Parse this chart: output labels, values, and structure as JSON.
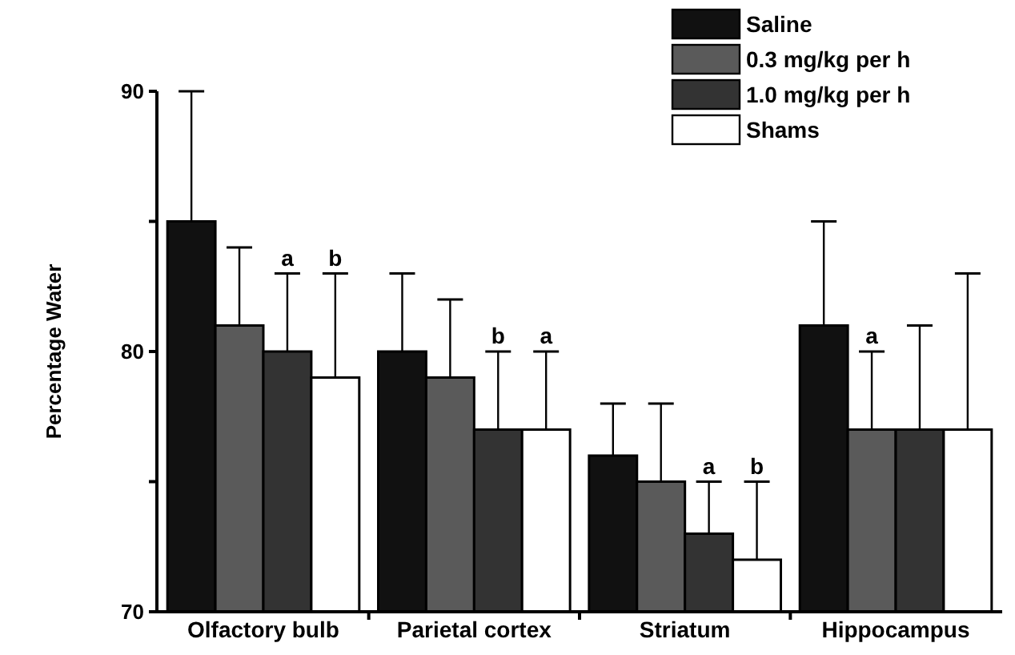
{
  "chart_data": {
    "type": "bar",
    "ylabel": "Percentage Water",
    "categories": [
      "Olfactory bulb",
      "Parietal cortex",
      "Striatum",
      "Hippocampus"
    ],
    "ylim": [
      70,
      90
    ],
    "yticks": [
      70,
      {
        "value": 75,
        "label": null
      },
      80,
      {
        "value": 85,
        "label": null
      },
      90
    ],
    "grid": false,
    "legend": "top right",
    "series": [
      {
        "name": "Saline",
        "color": "#111111",
        "values": [
          85,
          80,
          76,
          81
        ],
        "errors": [
          [
            85,
            90
          ],
          [
            80,
            83
          ],
          [
            76,
            78
          ],
          [
            81,
            85
          ]
        ]
      },
      {
        "name": "0.3 mg/kg per h",
        "color": "#5a5a5a",
        "values": [
          81,
          79,
          75,
          77
        ],
        "errors": [
          [
            81,
            84
          ],
          [
            79,
            82
          ],
          [
            75,
            78
          ],
          [
            77,
            80
          ]
        ]
      },
      {
        "name": "1.0 mg/kg per h",
        "color": "#333333",
        "values": [
          80,
          77,
          73,
          77
        ],
        "errors": [
          [
            80,
            83
          ],
          [
            77,
            80
          ],
          [
            73,
            75
          ],
          [
            77,
            81
          ]
        ]
      },
      {
        "name": "Shams",
        "color": "#ffffff",
        "values": [
          79,
          77,
          72,
          77
        ],
        "errors": [
          [
            79,
            83
          ],
          [
            77,
            80
          ],
          [
            72,
            75
          ],
          [
            77,
            83
          ]
        ]
      }
    ],
    "annotations": [
      "a",
      "b",
      "b",
      "a",
      "a",
      "b",
      "a"
    ]
  }
}
